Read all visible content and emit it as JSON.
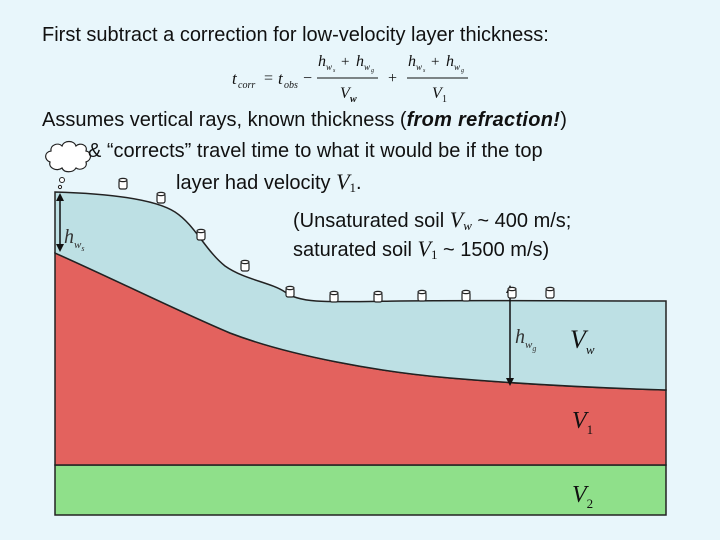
{
  "text": {
    "line1": "First subtract a correction for low-velocity layer thickness:",
    "line2_pre": "Assumes vertical rays, known thickness (",
    "line2_emph": "from refraction!",
    "line2_post": ")",
    "line3": "& “corrects” travel time to what it would be if the top",
    "line4_pre": "layer had velocity ",
    "line4_var": "V",
    "line4_sub": "1",
    "line4_post": ".",
    "line5_pre": "(Unsaturated soil ",
    "line5_var": "V",
    "line5_sub": "w",
    "line5_post": " ~ 400 m/s;",
    "line6_pre": "saturated soil ",
    "line6_var": "V",
    "line6_sub": "1",
    "line6_post": " ~ 1500 m/s)"
  },
  "formula": {
    "lhs": "t",
    "lhs_sub": "corr",
    "equals": "=",
    "t_obs": "t",
    "t_obs_sub": "obs",
    "minus": "−",
    "plus": "+",
    "num1": "h",
    "num_ws": "w",
    "num_ws_sub": "s",
    "num_plus": "+",
    "num_wg": "w",
    "num_wg_sub": "g",
    "den1": "V",
    "den1_sub": "w",
    "den2": "V",
    "den2_sub": "1"
  },
  "labels": {
    "vw": "V",
    "vw_sub": "w",
    "v1": "V",
    "v1_sub": "1",
    "v2": "V",
    "v2_sub": "2",
    "hws": "h",
    "hws_sub": "w",
    "hws_subsub": "s",
    "hwg": "h",
    "hwg_sub": "w",
    "hwg_subsub": "g"
  },
  "colors": {
    "background": "#e8f6fb",
    "unsaturated_layer": "#bde0e4",
    "saturated_layer": "#e3625e",
    "bedrock_layer": "#8fe08a",
    "outline": "#222222"
  }
}
